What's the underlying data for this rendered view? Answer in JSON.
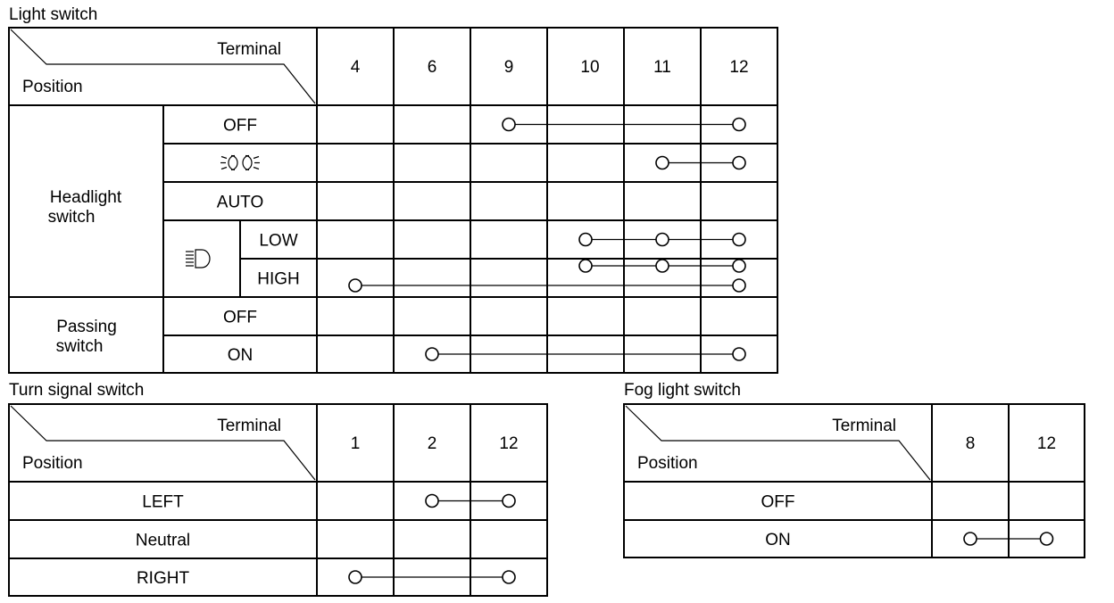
{
  "light_switch": {
    "title": "Light switch",
    "header_terminal": "Terminal",
    "header_position": "Position",
    "terminals": [
      "4",
      "6",
      "9",
      "10",
      "11",
      "12"
    ],
    "groups": [
      {
        "label_line1": "Headlight",
        "label_line2": "switch"
      },
      {
        "label_line1": "Passing",
        "label_line2": "switch"
      }
    ],
    "rows": [
      {
        "label": "OFF",
        "connections": [
          [
            "9",
            "12"
          ]
        ]
      },
      {
        "label": "",
        "icon": "parking-light-icon",
        "connections": [
          [
            "11",
            "12"
          ]
        ]
      },
      {
        "label": "AUTO",
        "connections": []
      },
      {
        "label": "LOW",
        "icon": "headlight-beam-icon",
        "connections": [
          [
            "10",
            "11",
            "12"
          ]
        ]
      },
      {
        "label": "HIGH",
        "connections": [
          [
            "10",
            "11",
            "12"
          ],
          [
            "4",
            "12"
          ]
        ]
      },
      {
        "label": "OFF",
        "connections": []
      },
      {
        "label": "ON",
        "connections": [
          [
            "6",
            "12"
          ]
        ]
      }
    ]
  },
  "turn_signal_switch": {
    "title": "Turn signal switch",
    "header_terminal": "Terminal",
    "header_position": "Position",
    "terminals": [
      "1",
      "2",
      "12"
    ],
    "rows": [
      {
        "label": "LEFT",
        "connections": [
          [
            "2",
            "12"
          ]
        ]
      },
      {
        "label": "Neutral",
        "connections": []
      },
      {
        "label": "RIGHT",
        "connections": [
          [
            "1",
            "12"
          ]
        ]
      }
    ]
  },
  "fog_light_switch": {
    "title": "Fog light switch",
    "header_terminal": "Terminal",
    "header_position": "Position",
    "terminals": [
      "8",
      "12"
    ],
    "rows": [
      {
        "label": "OFF",
        "connections": []
      },
      {
        "label": "ON",
        "connections": [
          [
            "8",
            "12"
          ]
        ]
      }
    ]
  }
}
